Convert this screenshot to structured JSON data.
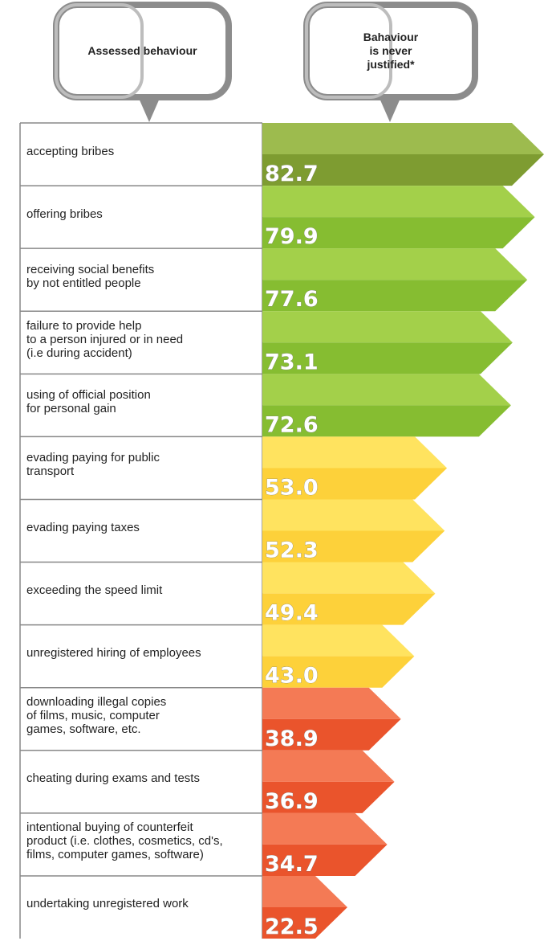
{
  "chart_data": {
    "type": "bar",
    "orientation": "horizontal",
    "headers": [
      "Assessed behaviour",
      "Bahaviour\nis never\njustified*"
    ],
    "categories": [
      "accepting bribes",
      "offering bribes",
      "receiving social benefits\nby not entitled people",
      "failure to provide help\nto a person injured or in need\n(i.e during accident)",
      "using of official position\nfor personal gain",
      "evading paying for public\ntransport",
      "evading paying taxes",
      "exceeding the speed limit",
      "unregistered hiring of employees",
      "downloading illegal copies\nof films, music, computer\ngames, software, etc.",
      "cheating during exams and tests",
      "intentional buying of counterfeit\nproduct (i.e. clothes, cosmetics, cd's,\nfilms, computer games, software)",
      "undertaking unregistered work"
    ],
    "values": [
      82.7,
      79.9,
      77.6,
      73.1,
      72.6,
      53.0,
      52.3,
      49.4,
      43.0,
      38.9,
      36.9,
      34.7,
      22.5
    ],
    "value_labels": [
      "82.7",
      "79.9",
      "77.6",
      "73.1",
      "72.6",
      "53.0",
      "52.3",
      "49.4",
      "43.0",
      "38.9",
      "36.9",
      "34.7",
      "22.5"
    ],
    "colors": [
      [
        "#9dbb4e",
        "#7e9c31"
      ],
      [
        "#a3d04a",
        "#86bd31"
      ],
      [
        "#a3d04a",
        "#86bd31"
      ],
      [
        "#a3d04a",
        "#86bd31"
      ],
      [
        "#a3d04a",
        "#86bd31"
      ],
      [
        "#ffe35f",
        "#fdd13a"
      ],
      [
        "#ffe35f",
        "#fdd13a"
      ],
      [
        "#ffe35f",
        "#fdd13a"
      ],
      [
        "#ffe35f",
        "#fdd13a"
      ],
      [
        "#f47a55",
        "#ea542c"
      ],
      [
        "#f47a55",
        "#ea542c"
      ],
      [
        "#f47a55",
        "#ea542c"
      ],
      [
        "#f47a55",
        "#ea542c"
      ]
    ]
  }
}
